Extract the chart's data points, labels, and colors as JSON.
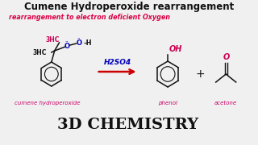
{
  "title": "Cumene Hydroperoxide rearrangement",
  "subtitle": "rearrangement to electron deficient Oxygen",
  "label_cumene": "cumene hydroperoxide",
  "label_phenol": "phenol",
  "label_acetone": "acetone",
  "label_reagent": "H2SO4",
  "label_3d": "3D CHEMISTRY",
  "bg_color": "#f0f0f0",
  "title_color": "#111111",
  "subtitle_color": "#dd0044",
  "label_color": "#cc0066",
  "reagent_color": "#0000bb",
  "arrow_color": "#cc0000",
  "struct_color": "#111111",
  "oh_color": "#cc0055",
  "oxygen_color": "#0000bb",
  "methyl_red_color": "#cc0055",
  "methyl_black_color": "#111111"
}
